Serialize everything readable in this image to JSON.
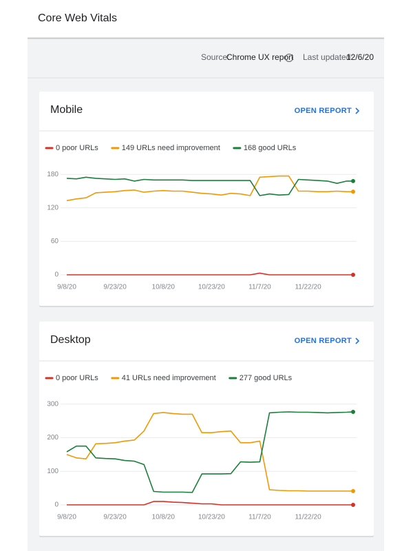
{
  "header": {
    "title": "Core Web Vitals"
  },
  "info": {
    "source_label": "Source:",
    "source": "Chrome UX report",
    "updated_label": "Last updated:",
    "updated": "12/6/20"
  },
  "cards": [
    {
      "title": "Mobile",
      "link": "OPEN REPORT",
      "chart_data": {
        "type": "line",
        "x": [
          "2020-09-08",
          "2020-09-11",
          "2020-09-14",
          "2020-09-17",
          "2020-09-20",
          "2020-09-23",
          "2020-09-26",
          "2020-09-29",
          "2020-10-02",
          "2020-10-05",
          "2020-10-08",
          "2020-10-11",
          "2020-10-14",
          "2020-10-17",
          "2020-10-20",
          "2020-10-23",
          "2020-10-26",
          "2020-10-29",
          "2020-11-01",
          "2020-11-04",
          "2020-11-07",
          "2020-11-10",
          "2020-11-13",
          "2020-11-16",
          "2020-11-19",
          "2020-11-22",
          "2020-11-25",
          "2020-11-28",
          "2020-12-01",
          "2020-12-04",
          "2020-12-06"
        ],
        "xlim": [
          "2020-09-08",
          "2020-12-06"
        ],
        "xticks": [
          {
            "value": "2020-09-08",
            "label": "9/8/20"
          },
          {
            "value": "2020-09-23",
            "label": "9/23/20"
          },
          {
            "value": "2020-10-08",
            "label": "10/8/20"
          },
          {
            "value": "2020-10-23",
            "label": "10/23/20"
          },
          {
            "value": "2020-11-07",
            "label": "11/7/20"
          },
          {
            "value": "2020-11-22",
            "label": "11/22/20"
          }
        ],
        "ylim": [
          0,
          200
        ],
        "yticks": [
          0,
          60,
          120,
          180
        ],
        "grid": true,
        "series": [
          {
            "name": "0 poor URLs",
            "color": "#d93025",
            "values": [
              0,
              0,
              0,
              0,
              0,
              0,
              0,
              0,
              0,
              0,
              0,
              0,
              0,
              0,
              0,
              0,
              0,
              0,
              0,
              0,
              3,
              0,
              0,
              0,
              0,
              0,
              0,
              0,
              0,
              0,
              0
            ]
          },
          {
            "name": "149 URLs need improvement",
            "color": "#f29900",
            "values": [
              133,
              136,
              138,
              147,
              148,
              149,
              151,
              152,
              148,
              150,
              151,
              150,
              150,
              148,
              146,
              145,
              143,
              146,
              145,
              142,
              175,
              176,
              177,
              177,
              150,
              150,
              149,
              149,
              150,
              149,
              149
            ]
          },
          {
            "name": "168 good URLs",
            "color": "#188038",
            "values": [
              173,
              172,
              175,
              173,
              172,
              171,
              172,
              168,
              171,
              170,
              170,
              170,
              170,
              169,
              169,
              169,
              169,
              169,
              169,
              169,
              142,
              145,
              143,
              144,
              171,
              170,
              169,
              168,
              164,
              168,
              168
            ]
          }
        ]
      }
    },
    {
      "title": "Desktop",
      "link": "OPEN REPORT",
      "chart_data": {
        "type": "line",
        "x": [
          "2020-09-08",
          "2020-09-11",
          "2020-09-14",
          "2020-09-17",
          "2020-09-20",
          "2020-09-23",
          "2020-09-26",
          "2020-09-29",
          "2020-10-02",
          "2020-10-05",
          "2020-10-08",
          "2020-10-11",
          "2020-10-14",
          "2020-10-17",
          "2020-10-20",
          "2020-10-23",
          "2020-10-26",
          "2020-10-29",
          "2020-11-01",
          "2020-11-04",
          "2020-11-07",
          "2020-11-10",
          "2020-11-13",
          "2020-11-16",
          "2020-11-19",
          "2020-11-22",
          "2020-11-25",
          "2020-11-28",
          "2020-12-01",
          "2020-12-04",
          "2020-12-06"
        ],
        "xlim": [
          "2020-09-08",
          "2020-12-06"
        ],
        "xticks": [
          {
            "value": "2020-09-08",
            "label": "9/8/20"
          },
          {
            "value": "2020-09-23",
            "label": "9/23/20"
          },
          {
            "value": "2020-10-08",
            "label": "10/8/20"
          },
          {
            "value": "2020-10-23",
            "label": "10/23/20"
          },
          {
            "value": "2020-11-07",
            "label": "11/7/20"
          },
          {
            "value": "2020-11-22",
            "label": "11/22/20"
          }
        ],
        "ylim": [
          0,
          320
        ],
        "yticks": [
          0,
          100,
          200,
          300
        ],
        "grid": true,
        "series": [
          {
            "name": "0 poor URLs",
            "color": "#d93025",
            "values": [
              0,
              0,
              0,
              0,
              0,
              0,
              0,
              0,
              0,
              10,
              10,
              8,
              7,
              5,
              3,
              3,
              0,
              0,
              0,
              0,
              0,
              0,
              0,
              0,
              0,
              0,
              0,
              0,
              0,
              0,
              0
            ]
          },
          {
            "name": "41 URLs need improvement",
            "color": "#f29900",
            "values": [
              150,
              140,
              137,
              182,
              183,
              185,
              190,
              193,
              220,
              272,
              275,
              272,
              270,
              270,
              215,
              215,
              218,
              220,
              185,
              185,
              190,
              45,
              43,
              42,
              42,
              41,
              41,
              41,
              41,
              41,
              41
            ]
          },
          {
            "name": "277 good URLs",
            "color": "#188038",
            "values": [
              158,
              175,
              175,
              140,
              138,
              137,
              132,
              130,
              120,
              40,
              38,
              38,
              38,
              37,
              92,
              92,
              92,
              93,
              128,
              127,
              128,
              274,
              276,
              277,
              276,
              276,
              275,
              274,
              275,
              276,
              277
            ]
          }
        ]
      }
    }
  ]
}
